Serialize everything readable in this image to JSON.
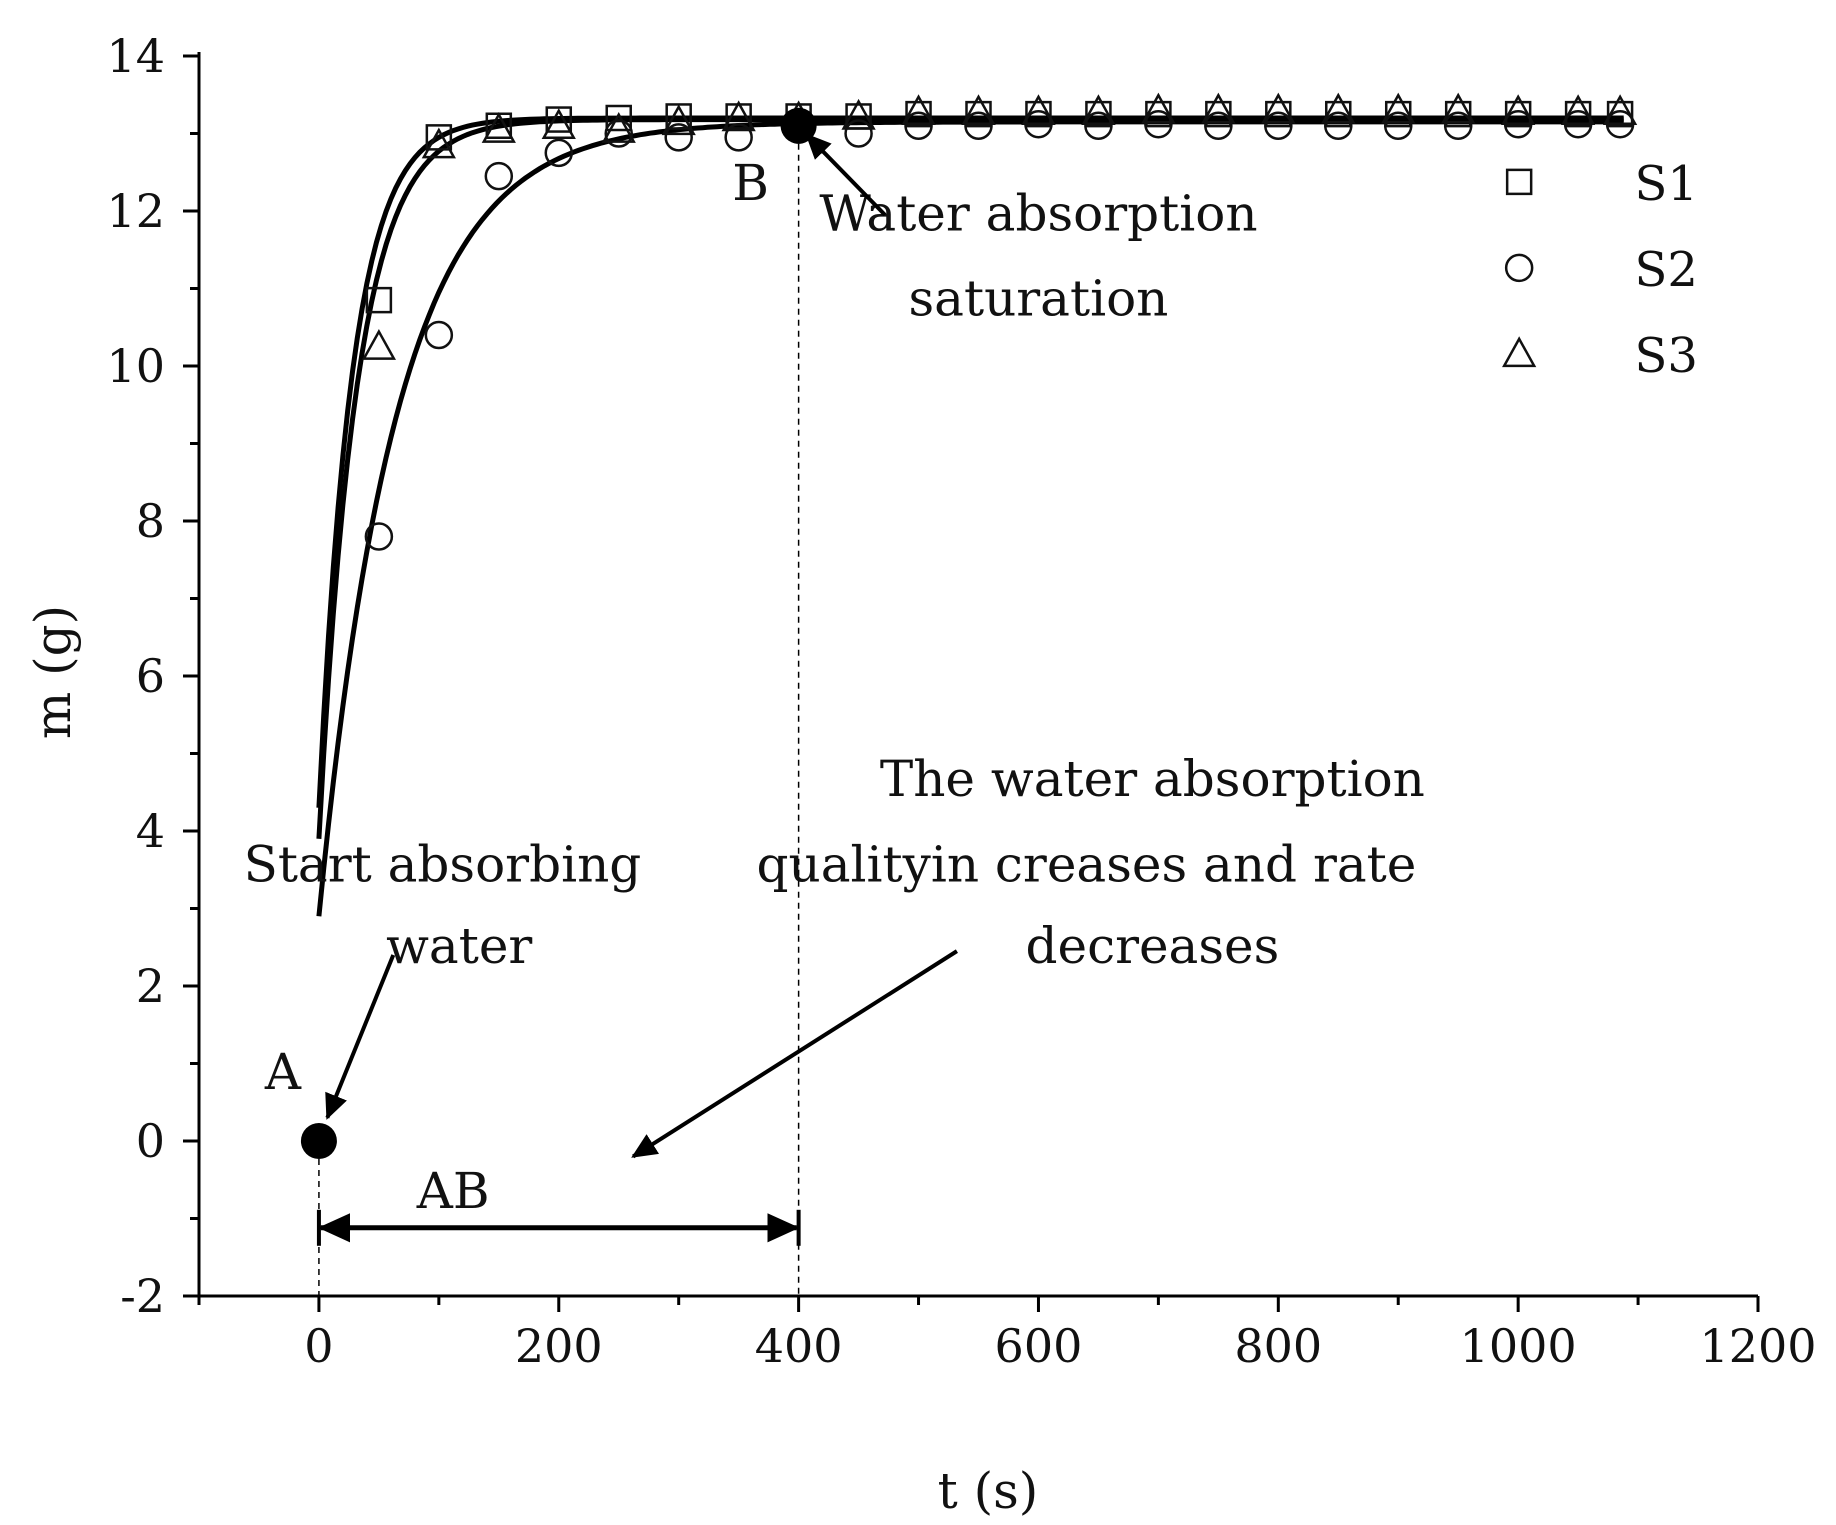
{
  "chart_data": {
    "type": "scatter",
    "title": "",
    "xlabel": "t (s)",
    "ylabel": "m (g)",
    "xlim": [
      -100,
      1200
    ],
    "ylim": [
      -2,
      14
    ],
    "xticks": [
      0,
      200,
      400,
      600,
      800,
      1000,
      1200
    ],
    "yticks": [
      -2,
      0,
      2,
      4,
      6,
      8,
      10,
      12,
      14
    ],
    "legend_position": "top-right",
    "series": [
      {
        "name": "S1",
        "marker": "square",
        "x": [
          50,
          100,
          150,
          200,
          250,
          300,
          350,
          400,
          450,
          500,
          550,
          600,
          650,
          700,
          750,
          800,
          850,
          900,
          950,
          1000,
          1050,
          1085
        ],
        "y": [
          10.85,
          12.95,
          13.1,
          13.18,
          13.2,
          13.22,
          13.22,
          13.22,
          13.22,
          13.25,
          13.25,
          13.25,
          13.25,
          13.25,
          13.25,
          13.25,
          13.25,
          13.25,
          13.25,
          13.25,
          13.25,
          13.25
        ],
        "fit": {
          "start": 4.3,
          "plateau": 13.2,
          "tau": 28
        }
      },
      {
        "name": "S2",
        "marker": "circle",
        "x": [
          50,
          100,
          150,
          200,
          250,
          300,
          350,
          400,
          450,
          500,
          550,
          600,
          650,
          700,
          750,
          800,
          850,
          900,
          950,
          1000,
          1050,
          1085
        ],
        "y": [
          7.8,
          10.4,
          12.45,
          12.75,
          13.0,
          12.95,
          12.95,
          13.05,
          13.0,
          13.1,
          13.1,
          13.12,
          13.1,
          13.12,
          13.1,
          13.1,
          13.1,
          13.1,
          13.1,
          13.12,
          13.12,
          13.12
        ],
        "fit": {
          "start": 2.9,
          "plateau": 13.15,
          "tau": 65
        }
      },
      {
        "name": "S3",
        "marker": "triangle",
        "x": [
          50,
          100,
          150,
          200,
          250,
          300,
          350,
          400,
          450,
          500,
          550,
          600,
          650,
          700,
          750,
          800,
          850,
          900,
          950,
          1000,
          1050,
          1085
        ],
        "y": [
          10.25,
          12.85,
          13.05,
          13.1,
          13.05,
          13.15,
          13.2,
          13.2,
          13.22,
          13.28,
          13.28,
          13.28,
          13.28,
          13.3,
          13.3,
          13.3,
          13.3,
          13.3,
          13.3,
          13.28,
          13.28,
          13.28
        ],
        "fit": {
          "start": 3.9,
          "plateau": 13.18,
          "tau": 32
        }
      }
    ],
    "points": [
      {
        "label": "A",
        "x": 0,
        "y": 0
      },
      {
        "label": "B",
        "x": 400,
        "y": 13.1
      }
    ],
    "range_label": "AB",
    "range": [
      0,
      400
    ],
    "annotations": [
      {
        "id": "saturation",
        "lines": [
          "Water absorption",
          "saturation"
        ]
      },
      {
        "id": "start",
        "lines": [
          "Start absorbing",
          "water"
        ]
      },
      {
        "id": "increase",
        "lines": [
          "The water absorption",
          "qualityin  creases and rate",
          "decreases"
        ]
      }
    ]
  }
}
